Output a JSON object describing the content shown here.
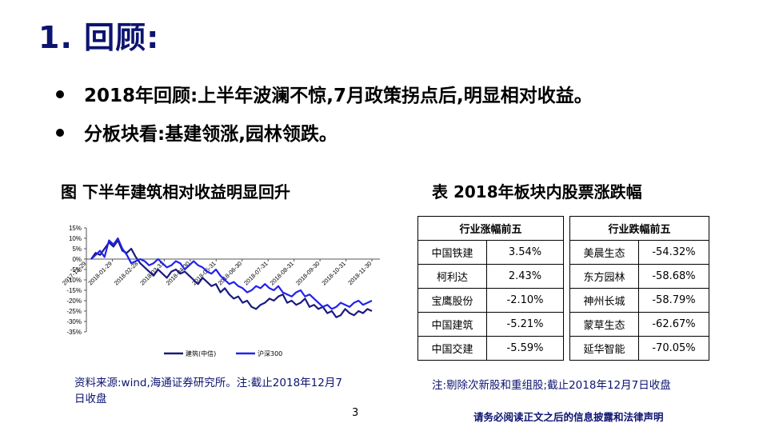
{
  "title": "1. 回顾:",
  "bullets": [
    "2018年回顾:上半年波澜不惊,7月政策拐点后,明显相对收益。",
    "分板块看:基建领涨,园林领跌。"
  ],
  "chart_caption": "图 下半年建筑相对收益明显回升",
  "table_caption": "表 2018年板块内股票涨跌幅",
  "chart_data": {
    "type": "line",
    "title": "",
    "xlabel": "",
    "ylabel": "",
    "ylim": [
      -35,
      15
    ],
    "yticks": [
      "15%",
      "10%",
      "5%",
      "0%",
      "-5%",
      "-10%",
      "-15%",
      "-20%",
      "-25%",
      "-30%",
      "-35%"
    ],
    "xticks": [
      "2017-12-29",
      "2018-01-29",
      "2018-02-28",
      "2018-03-31",
      "2018-04-30",
      "2018-05-31",
      "2018-06-30",
      "2018-07-31",
      "2018-08-31",
      "2018-09-30",
      "2018-10-31",
      "2018-11-30"
    ],
    "grid": false,
    "legend_position": "bottom",
    "series": [
      {
        "name": "建筑(中信)",
        "color": "#1a1a80",
        "values": [
          0,
          3,
          2,
          5,
          8,
          6,
          9,
          4,
          3,
          5,
          1,
          -2,
          -4,
          -6,
          -8,
          -5,
          -7,
          -9,
          -6,
          -5,
          -7,
          -6,
          -8,
          -10,
          -12,
          -9,
          -11,
          -13,
          -12,
          -16,
          -14,
          -17,
          -19,
          -18,
          -21,
          -20,
          -23,
          -24,
          -22,
          -21,
          -19,
          -20,
          -18,
          -17,
          -21,
          -20,
          -22,
          -21,
          -19,
          -23,
          -22,
          -24,
          -23,
          -26,
          -25,
          -28,
          -27,
          -24,
          -26,
          -27,
          -25,
          -26,
          -24,
          -25
        ]
      },
      {
        "name": "沪深300",
        "color": "#2222ee",
        "values": [
          0,
          2,
          4,
          1,
          9,
          7,
          10,
          5,
          2,
          -2,
          -1,
          0,
          -1,
          -3,
          -2,
          0,
          -2,
          -4,
          -3,
          -1,
          -2,
          -5,
          -3,
          -1,
          -3,
          -4,
          -6,
          -7,
          -5,
          -8,
          -10,
          -12,
          -11,
          -13,
          -14,
          -16,
          -15,
          -13,
          -14,
          -12,
          -14,
          -15,
          -13,
          -16,
          -17,
          -18,
          -16,
          -15,
          -18,
          -17,
          -19,
          -21,
          -23,
          -22,
          -24,
          -23,
          -21,
          -22,
          -23,
          -21,
          -20,
          -22,
          -21,
          -20
        ]
      }
    ]
  },
  "chart_source": "资料来源:wind,海通证券研究所。注:截止2018年12月7日收盘",
  "table": {
    "headers": [
      "行业涨幅前五",
      "行业跌幅前五"
    ],
    "rows": [
      [
        "中国铁建",
        "3.54%",
        "美晨生态",
        "-54.32%"
      ],
      [
        "柯利达",
        "2.43%",
        "东方园林",
        "-58.68%"
      ],
      [
        "宝鹰股份",
        "-2.10%",
        "神州长城",
        "-58.79%"
      ],
      [
        "中国建筑",
        "-5.21%",
        "蒙草生态",
        "-62.67%"
      ],
      [
        "中国交建",
        "-5.59%",
        "延华智能",
        "-70.05%"
      ]
    ]
  },
  "table_note": "注:剔除次新股和重组股;截止2018年12月7日收盘",
  "page_number": "3",
  "disclaimer": "请务必阅读正文之后的信息披露和法律声明"
}
